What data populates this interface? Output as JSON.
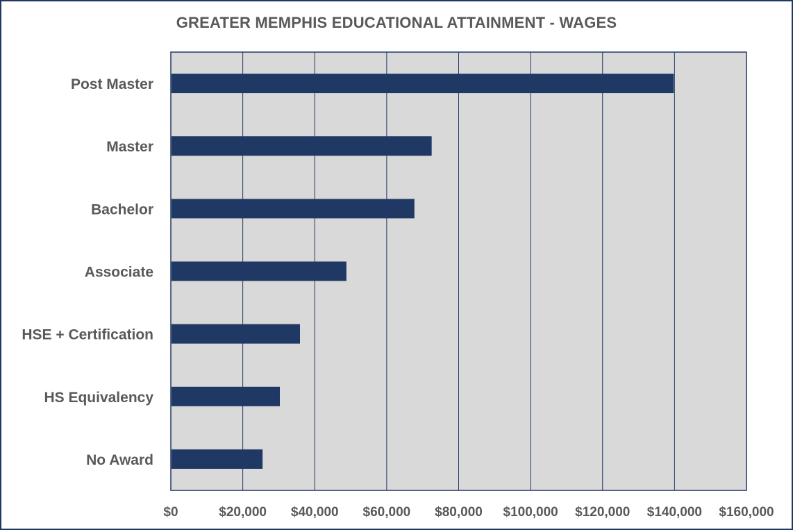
{
  "chart_data": {
    "type": "bar",
    "orientation": "horizontal",
    "title": "GREATER MEMPHIS EDUCATIONAL ATTAINMENT - WAGES",
    "categories": [
      "Post Master",
      "Master",
      "Bachelor",
      "Associate",
      "HSE + Certification",
      "HS Equivalency",
      "No Award"
    ],
    "values": [
      139800,
      72500,
      67700,
      48800,
      35900,
      30300,
      25500
    ],
    "xlim": [
      0,
      160000
    ],
    "x_ticks": [
      0,
      20000,
      40000,
      60000,
      80000,
      100000,
      120000,
      140000,
      160000
    ],
    "x_tick_labels": [
      "$0",
      "$20,000",
      "$40,000",
      "$60,000",
      "$80,000",
      "$100,000",
      "$120,000",
      "$140,000",
      "$160,000"
    ],
    "grid": true,
    "bar_color": "#1f3864",
    "plot_background": "#d9d9d9",
    "gridline_color": "#1f3864"
  }
}
